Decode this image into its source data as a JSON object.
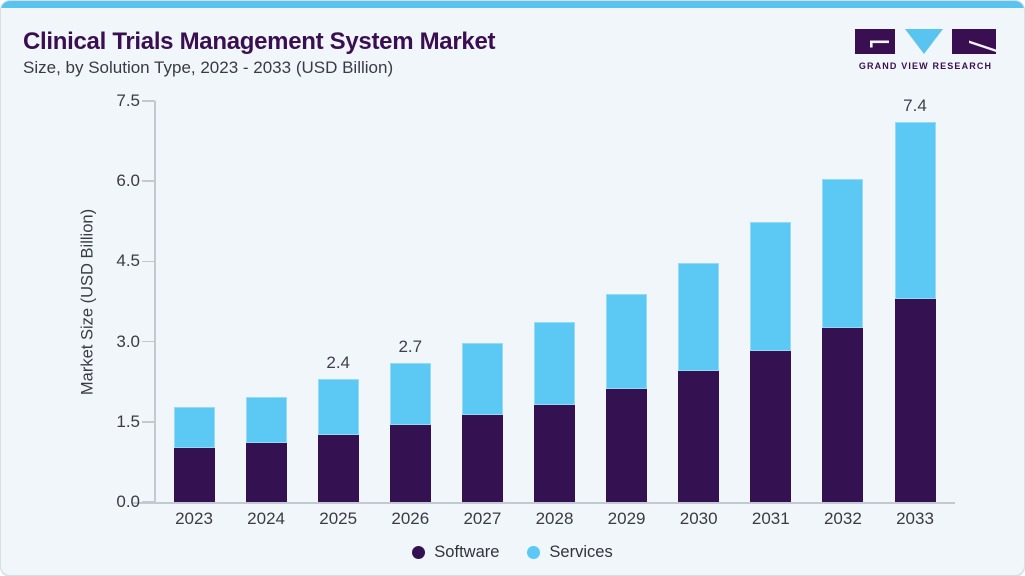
{
  "page": {
    "background": "#f1f6fa",
    "accent_bar_color": "#58c4ef",
    "border_color": "#d9dee4"
  },
  "header": {
    "title": "Clinical Trials Management System Market",
    "subtitle": "Size, by Solution Type, 2023 - 2033 (USD Billion)"
  },
  "logo": {
    "brand": "GRAND VIEW RESEARCH",
    "purple": "#3a0f52",
    "blue": "#58c4ef"
  },
  "chart_data": {
    "type": "bar",
    "stacked": true,
    "title": "Clinical Trials Management System Market Size, by Solution Type, 2023 - 2033 (USD Billion)",
    "xlabel": "",
    "ylabel": "Market Size (USD Billion)",
    "ylim": [
      0,
      7.5
    ],
    "yticks": [
      "0.0",
      "1.5",
      "3.0",
      "4.5",
      "6.0",
      "7.5"
    ],
    "grid": false,
    "legend_position": "bottom",
    "categories": [
      "2023",
      "2024",
      "2025",
      "2026",
      "2027",
      "2028",
      "2029",
      "2030",
      "2031",
      "2032",
      "2033"
    ],
    "series": [
      {
        "name": "Software",
        "color": "#341150",
        "values": [
          1.05,
          1.15,
          1.3,
          1.5,
          1.7,
          1.9,
          2.2,
          2.55,
          2.95,
          3.4,
          3.95
        ]
      },
      {
        "name": "Services",
        "color": "#5cc8f4",
        "values": [
          0.8,
          0.9,
          1.1,
          1.2,
          1.4,
          1.6,
          1.85,
          2.1,
          2.5,
          2.9,
          3.45
        ]
      }
    ],
    "totals": [
      1.85,
      2.05,
      2.4,
      2.7,
      3.1,
      3.5,
      4.05,
      4.65,
      5.45,
      6.3,
      7.4
    ],
    "bar_value_labels": {
      "2025": "2.4",
      "2026": "2.7",
      "2033": "7.4"
    }
  },
  "legend": {
    "items": [
      {
        "label": "Software",
        "color": "#341150"
      },
      {
        "label": "Services",
        "color": "#5cc8f4"
      }
    ]
  }
}
